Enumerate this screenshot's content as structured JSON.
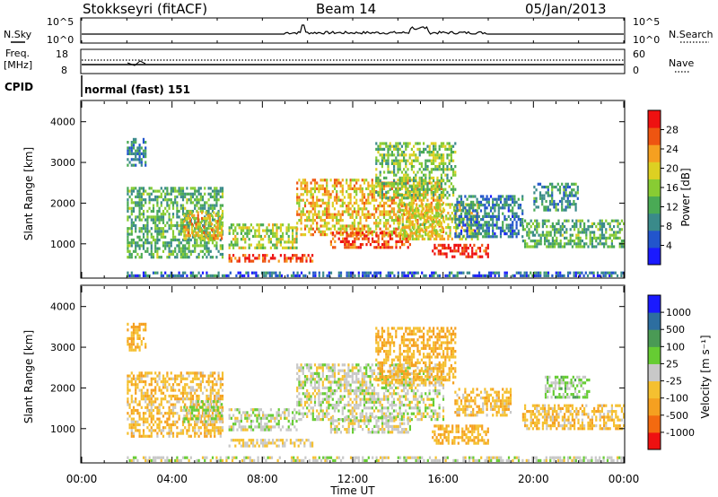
{
  "header": {
    "station": "Stokkseyri (fitACF)",
    "beam": "Beam 14",
    "date": "05/Jan/2013"
  },
  "noise_panel": {
    "left_label": "N.Sky",
    "right_label": "N.Search",
    "y_ticks": [
      "10^5",
      "10^0"
    ]
  },
  "freq_panel": {
    "left_label_1": "Freq.",
    "left_label_2": "[MHz]",
    "right_label": "Nave",
    "left_ticks": [
      "18",
      "8"
    ],
    "right_ticks": [
      "60",
      "0"
    ]
  },
  "cpid": {
    "label": "CPID",
    "value": "normal (fast) 151"
  },
  "chart_data": [
    {
      "type": "heatmap",
      "name": "power",
      "ylabel": "Slant Range [km]",
      "y_ticks": [
        "4000",
        "3000",
        "2000",
        "1000"
      ],
      "y_range_km": [
        180,
        4500
      ],
      "x_range_hours": [
        0,
        24
      ],
      "colorbar": {
        "label": "Power [dB]",
        "ticks": [
          "28",
          "24",
          "20",
          "16",
          "12",
          "8",
          "4"
        ],
        "range": [
          0,
          30
        ],
        "colors": [
          "#1a1aff",
          "#2255cc",
          "#3a8a8a",
          "#4aaa55",
          "#88cc33",
          "#ddd022",
          "#f5a020",
          "#ee5511",
          "#ee1111"
        ]
      },
      "regions": [
        {
          "t0": 2.0,
          "t1": 6.2,
          "r0": 700,
          "r1": 2400,
          "level": 12
        },
        {
          "t0": 2.0,
          "t1": 2.8,
          "r0": 2900,
          "r1": 3600,
          "level": 8
        },
        {
          "t0": 4.5,
          "t1": 6.2,
          "r0": 1100,
          "r1": 1800,
          "level": 20
        },
        {
          "t0": 6.5,
          "t1": 10.2,
          "r0": 550,
          "r1": 750,
          "level": 26
        },
        {
          "t0": 6.5,
          "t1": 9.5,
          "r0": 900,
          "r1": 1500,
          "level": 16
        },
        {
          "t0": 9.5,
          "t1": 16.0,
          "r0": 1200,
          "r1": 2600,
          "level": 20
        },
        {
          "t0": 11.0,
          "t1": 14.5,
          "r0": 900,
          "r1": 1300,
          "level": 26
        },
        {
          "t0": 13.0,
          "t1": 16.5,
          "r0": 2100,
          "r1": 3500,
          "level": 14
        },
        {
          "t0": 14.0,
          "t1": 17.5,
          "r0": 1100,
          "r1": 2000,
          "level": 18
        },
        {
          "t0": 15.5,
          "t1": 18.0,
          "r0": 650,
          "r1": 1000,
          "level": 28
        },
        {
          "t0": 16.5,
          "t1": 19.5,
          "r0": 1200,
          "r1": 2200,
          "level": 8
        },
        {
          "t0": 19.5,
          "t1": 24.0,
          "r0": 900,
          "r1": 1600,
          "level": 12
        },
        {
          "t0": 20.0,
          "t1": 22.0,
          "r0": 1800,
          "r1": 2500,
          "level": 10
        },
        {
          "t0": 2.0,
          "t1": 24.0,
          "r0": 180,
          "r1": 320,
          "level": 6
        }
      ]
    },
    {
      "type": "heatmap",
      "name": "velocity",
      "ylabel": "Slant Range [km]",
      "xlabel": "Time UT",
      "y_ticks": [
        "4000",
        "3000",
        "2000",
        "1000"
      ],
      "y_range_km": [
        180,
        4500
      ],
      "x_range_hours": [
        0,
        24
      ],
      "x_ticks": [
        "00:00",
        "04:00",
        "08:00",
        "12:00",
        "16:00",
        "20:00",
        "00:00"
      ],
      "colorbar": {
        "label": "Velocity [m s⁻¹]",
        "ticks": [
          "1000",
          "500",
          "100",
          "25",
          "-25",
          "-100",
          "-500",
          "-1000"
        ],
        "range": [
          -1200,
          1200
        ],
        "colors": [
          "#ee1111",
          "#f36a10",
          "#f5a020",
          "#f5c030",
          "#c8c8c8",
          "#66cc33",
          "#4a9a55",
          "#2d6ea0",
          "#1a1aff"
        ]
      },
      "regions": [
        {
          "t0": 2.0,
          "t1": 6.2,
          "r0": 800,
          "r1": 2400,
          "level": -300
        },
        {
          "t0": 2.0,
          "t1": 2.8,
          "r0": 2900,
          "r1": 3600,
          "level": -400
        },
        {
          "t0": 4.5,
          "t1": 6.2,
          "r0": 1200,
          "r1": 1700,
          "level": 150
        },
        {
          "t0": 6.5,
          "t1": 10.2,
          "r0": 550,
          "r1": 750,
          "level": -150
        },
        {
          "t0": 6.5,
          "t1": 9.5,
          "r0": 1000,
          "r1": 1500,
          "level": 60
        },
        {
          "t0": 9.5,
          "t1": 16.0,
          "r0": 1200,
          "r1": 2600,
          "level": 0
        },
        {
          "t0": 11.0,
          "t1": 14.5,
          "r0": 900,
          "r1": 1300,
          "level": 0
        },
        {
          "t0": 13.0,
          "t1": 16.5,
          "r0": 2100,
          "r1": 3500,
          "level": -400
        },
        {
          "t0": 15.5,
          "t1": 18.0,
          "r0": 650,
          "r1": 1100,
          "level": -400
        },
        {
          "t0": 16.5,
          "t1": 19.0,
          "r0": 1300,
          "r1": 2000,
          "level": -300
        },
        {
          "t0": 19.5,
          "t1": 24.0,
          "r0": 1000,
          "r1": 1600,
          "level": -300
        },
        {
          "t0": 20.5,
          "t1": 22.5,
          "r0": 1800,
          "r1": 2300,
          "level": 200
        },
        {
          "t0": 2.0,
          "t1": 24.0,
          "r0": 180,
          "r1": 320,
          "level": 0
        }
      ]
    }
  ]
}
